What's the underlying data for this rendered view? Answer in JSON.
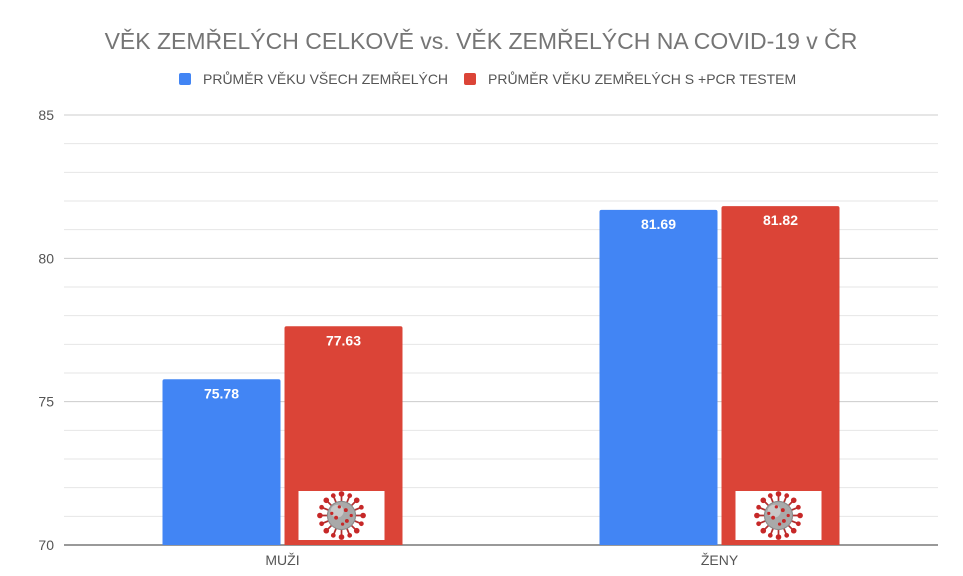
{
  "chart_data": {
    "type": "bar",
    "title": "VĚK ZEMŘELÝCH CELKOVĚ vs. VĚK ZEMŘELÝCH NA COVID-19 v ČR",
    "categories": [
      "MUŽI",
      "ŽENY"
    ],
    "series": [
      {
        "name": "PRŮMĚR VĚKU VŠECH ZEMŘELÝCH",
        "values": [
          75.78,
          81.69
        ],
        "color": "#4285f4"
      },
      {
        "name": "PRŮMĚR VĚKU ZEMŘELÝCH S +PCR TESTEM",
        "values": [
          77.63,
          81.82
        ],
        "color": "#db4437"
      }
    ],
    "data_labels": [
      [
        "75.78",
        "81.69"
      ],
      [
        "77.63",
        "81.82"
      ]
    ],
    "ylim": [
      70,
      85
    ],
    "y_ticks": [
      70,
      75,
      80,
      85
    ],
    "y_tick_labels": [
      "70",
      "75",
      "80",
      "85"
    ],
    "minor_grid_step": 1,
    "xlabel": "",
    "ylabel": "",
    "grid": true,
    "legend_position": "top-center",
    "bar_image_icon": "coronavirus-icon"
  }
}
